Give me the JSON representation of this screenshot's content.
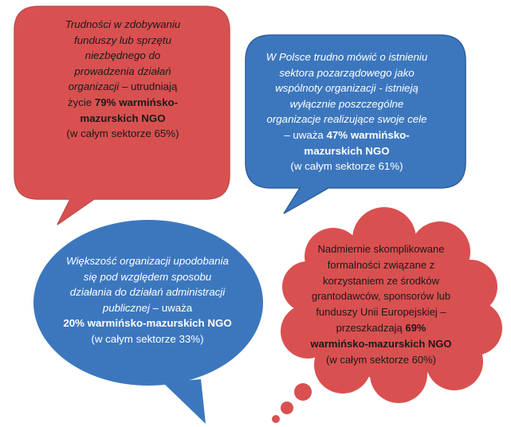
{
  "colors": {
    "red_fill": "#D95050",
    "red_stroke": "#C0504D",
    "blue_fill": "#3C77BE",
    "blue_stroke": "#2E5F9E"
  },
  "bubbles": [
    {
      "id": "funding-difficulties",
      "shape": "rounded-rectangle-callout",
      "italic_lines": [
        "Trudności w zdobywaniu",
        "funduszy lub sprzętu",
        "niezbędnego do",
        "prowadzenia działań",
        "organizacji"
      ],
      "plain_after_italic": " – utrudniają",
      "line_pre_bold": "życie ",
      "bold_value": "79% warmińsko-",
      "bold_line2": "mazurskich NGO",
      "sector_note": "(w całym sektorze 65%)"
    },
    {
      "id": "no-sector",
      "shape": "rounded-rectangle-callout",
      "italic_lines": [
        "W Polsce trudno mówić o istnieniu",
        "sektora pozarządowego jako",
        "wspólnoty organizacji - istnieją",
        "wyłącznie poszczególne",
        "organizacje realizujące swoje cele"
      ],
      "line_pre_bold": "– uważa ",
      "bold_value": "47% warmińsko-",
      "bold_line2": "mazurskich NGO",
      "sector_note": "(w całym sektorze 61%)"
    },
    {
      "id": "similar-to-administration",
      "shape": "oval-callout",
      "italic_lines": [
        "Większość organizacji upodobania",
        "się pod względem sposobu",
        "działania do działań administracji",
        "publicznej"
      ],
      "plain_after_italic": " – uważa",
      "bold_value": "20% warmińsko-mazurskich NGO",
      "sector_note": "(w całym sektorze 33%)"
    },
    {
      "id": "complicated-formalities",
      "shape": "cloud-callout",
      "plain_lines": [
        "Nadmiernie skomplikowane",
        "formalności związane z",
        "korzystaniem ze środków",
        "grantodawców, sponsorów lub",
        "funduszy Unii Europejskiej –"
      ],
      "line_pre_bold": "przeszkadzają ",
      "bold_value": "69%",
      "bold_line2": "warmińsko-mazurskich NGO",
      "sector_note": "(w całym sektorze 60%)"
    }
  ]
}
